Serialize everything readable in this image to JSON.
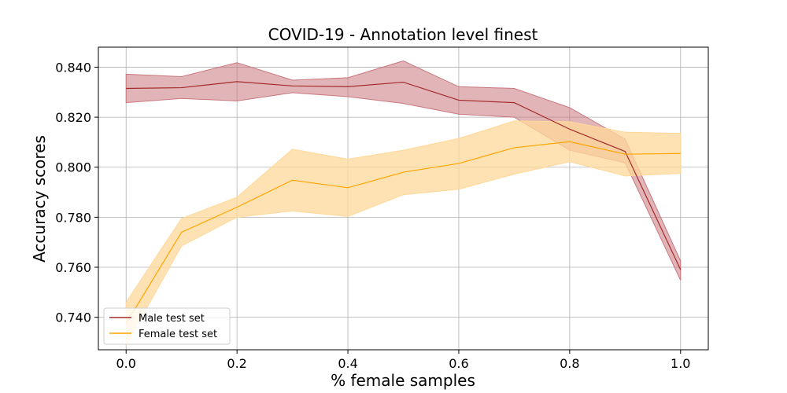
{
  "chart_data": {
    "type": "line",
    "title": "COVID-19 - Annotation level finest",
    "xlabel": "% female samples",
    "ylabel": "Accuracy scores",
    "xlim": [
      -0.05,
      1.05
    ],
    "ylim": [
      0.727,
      0.848
    ],
    "xticks": [
      0.0,
      0.2,
      0.4,
      0.6,
      0.8,
      1.0
    ],
    "xtick_labels": [
      "0.0",
      "0.2",
      "0.4",
      "0.6",
      "0.8",
      "1.0"
    ],
    "yticks": [
      0.74,
      0.76,
      0.78,
      0.8,
      0.82,
      0.84
    ],
    "ytick_labels": [
      "0.740",
      "0.760",
      "0.780",
      "0.800",
      "0.820",
      "0.840"
    ],
    "grid": true,
    "legend_position": "lower-left",
    "x": [
      0.0,
      0.1,
      0.2,
      0.3,
      0.4,
      0.5,
      0.6,
      0.7,
      0.8,
      0.9,
      1.0
    ],
    "series": [
      {
        "name": "Male test set",
        "color": "#a52a2a",
        "fill_color": "#c9777d",
        "values": [
          0.8315,
          0.8318,
          0.8342,
          0.8325,
          0.8322,
          0.834,
          0.8268,
          0.8258,
          0.8152,
          0.8063,
          0.759
        ],
        "lower": [
          0.8258,
          0.8275,
          0.8265,
          0.8298,
          0.8282,
          0.8255,
          0.8212,
          0.82,
          0.8068,
          0.8018,
          0.7548
        ],
        "upper": [
          0.8372,
          0.8362,
          0.8418,
          0.8348,
          0.8358,
          0.8425,
          0.8322,
          0.8315,
          0.8238,
          0.8112,
          0.7625
        ]
      },
      {
        "name": "Female test set",
        "color": "#ffa500",
        "fill_color": "#ffd89a",
        "values": [
          0.7375,
          0.774,
          0.784,
          0.7948,
          0.7918,
          0.798,
          0.8015,
          0.8078,
          0.8102,
          0.8052,
          0.8055
        ],
        "lower": [
          0.729,
          0.7685,
          0.78,
          0.7825,
          0.7803,
          0.789,
          0.7912,
          0.7972,
          0.8022,
          0.7965,
          0.7975
        ],
        "upper": [
          0.746,
          0.7795,
          0.788,
          0.8072,
          0.8032,
          0.8068,
          0.8115,
          0.8185,
          0.8182,
          0.814,
          0.8135
        ]
      }
    ]
  }
}
